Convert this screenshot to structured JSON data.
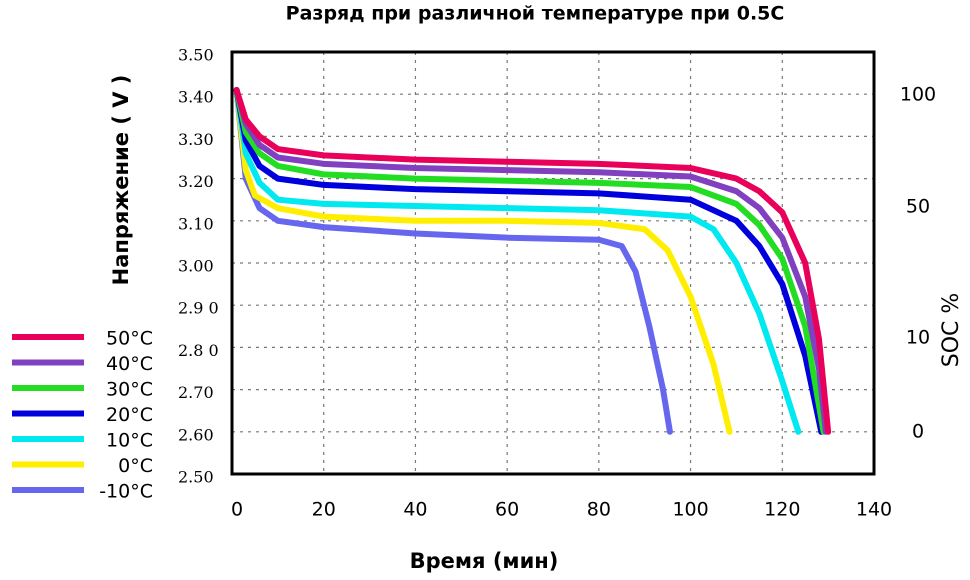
{
  "chart_data": {
    "type": "line",
    "title": "Разряд при различной температуре при 0.5С",
    "x_label": "Время  (мин)",
    "y_label": "Напряжение ( V )",
    "y2_label": "SOC %",
    "xlim": [
      0,
      140
    ],
    "xticks": [
      0,
      20,
      40,
      60,
      80,
      100,
      120,
      140
    ],
    "ylim": [
      2.5,
      3.5
    ],
    "yticks": [
      {
        "value": 3.5,
        "label": "3.50"
      },
      {
        "value": 3.4,
        "label": "3.40"
      },
      {
        "value": 3.3,
        "label": "3.30"
      },
      {
        "value": 3.2,
        "label": "3.20"
      },
      {
        "value": 3.1,
        "label": "3.10"
      },
      {
        "value": 3.0,
        "label": "3.00"
      },
      {
        "value": 2.9,
        "label": "2.9 0"
      },
      {
        "value": 2.8,
        "label": "2.8 0"
      },
      {
        "value": 2.7,
        "label": "2.70"
      },
      {
        "value": 2.6,
        "label": "2.60"
      },
      {
        "value": 2.5,
        "label": "2.50"
      }
    ],
    "y2ticks": [
      100,
      50,
      10,
      0
    ],
    "grid": true,
    "series": [
      {
        "name": "50°C",
        "color": "#e8005a",
        "x": [
          1,
          3,
          6,
          10,
          20,
          40,
          60,
          80,
          100,
          110,
          115,
          120,
          125,
          128,
          130
        ],
        "values": [
          3.41,
          3.34,
          3.3,
          3.27,
          3.255,
          3.245,
          3.24,
          3.235,
          3.225,
          3.2,
          3.17,
          3.12,
          3.0,
          2.82,
          2.6
        ]
      },
      {
        "name": "40°C",
        "color": "#8040c0",
        "x": [
          1,
          3,
          6,
          10,
          20,
          40,
          60,
          80,
          100,
          110,
          115,
          120,
          125,
          128,
          129.5
        ],
        "values": [
          3.41,
          3.33,
          3.28,
          3.25,
          3.235,
          3.225,
          3.22,
          3.215,
          3.205,
          3.17,
          3.13,
          3.06,
          2.92,
          2.75,
          2.6
        ]
      },
      {
        "name": "30°C",
        "color": "#22dd22",
        "x": [
          1,
          3,
          6,
          10,
          20,
          40,
          60,
          80,
          100,
          110,
          115,
          120,
          125,
          129
        ],
        "values": [
          3.41,
          3.31,
          3.26,
          3.23,
          3.21,
          3.2,
          3.195,
          3.19,
          3.18,
          3.14,
          3.09,
          3.01,
          2.85,
          2.6
        ]
      },
      {
        "name": "20°C",
        "color": "#0000dd",
        "x": [
          1,
          3,
          6,
          10,
          20,
          40,
          60,
          80,
          100,
          110,
          115,
          120,
          125,
          128.5
        ],
        "values": [
          3.41,
          3.29,
          3.23,
          3.2,
          3.185,
          3.175,
          3.17,
          3.165,
          3.15,
          3.1,
          3.04,
          2.95,
          2.78,
          2.6
        ]
      },
      {
        "name": "10°C",
        "color": "#00e8f0",
        "x": [
          1,
          3,
          6,
          10,
          20,
          40,
          60,
          80,
          100,
          105,
          110,
          115,
          120,
          123.5
        ],
        "values": [
          3.41,
          3.26,
          3.19,
          3.15,
          3.14,
          3.135,
          3.13,
          3.125,
          3.11,
          3.08,
          3.0,
          2.88,
          2.72,
          2.6
        ]
      },
      {
        "name": "0°C",
        "color": "#ffee00",
        "x": [
          1,
          3,
          5,
          10,
          20,
          40,
          60,
          80,
          90,
          95,
          100,
          105,
          108.5
        ],
        "values": [
          3.41,
          3.22,
          3.16,
          3.13,
          3.11,
          3.1,
          3.1,
          3.095,
          3.08,
          3.03,
          2.92,
          2.76,
          2.6
        ]
      },
      {
        "name": "-10°C",
        "color": "#6666ee",
        "x": [
          1,
          3,
          6,
          10,
          20,
          40,
          60,
          80,
          85,
          88,
          91,
          94,
          95.5
        ],
        "values": [
          3.41,
          3.2,
          3.13,
          3.1,
          3.085,
          3.07,
          3.06,
          3.055,
          3.04,
          2.98,
          2.85,
          2.7,
          2.6
        ]
      }
    ]
  }
}
